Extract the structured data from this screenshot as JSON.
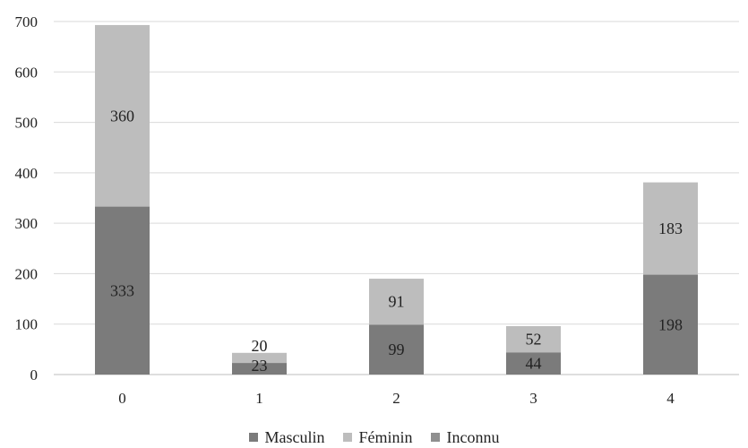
{
  "chart_data": {
    "type": "bar",
    "stacked": true,
    "categories": [
      "0",
      "1",
      "2",
      "3",
      "4"
    ],
    "series": [
      {
        "name": "Masculin",
        "values": [
          333,
          23,
          99,
          44,
          198
        ],
        "color": "#7b7b7b"
      },
      {
        "name": "Féminin",
        "values": [
          360,
          20,
          91,
          52,
          183
        ],
        "color": "#bdbdbd"
      },
      {
        "name": "Inconnu",
        "values": [
          0,
          0,
          0,
          0,
          0
        ],
        "color": "#8f8f8f"
      }
    ],
    "title": "",
    "xlabel": "",
    "ylabel": "",
    "ylim": [
      0,
      700
    ],
    "yticks": [
      0,
      100,
      200,
      300,
      400,
      500,
      600,
      700
    ],
    "grid": true,
    "legend": "bottom"
  }
}
